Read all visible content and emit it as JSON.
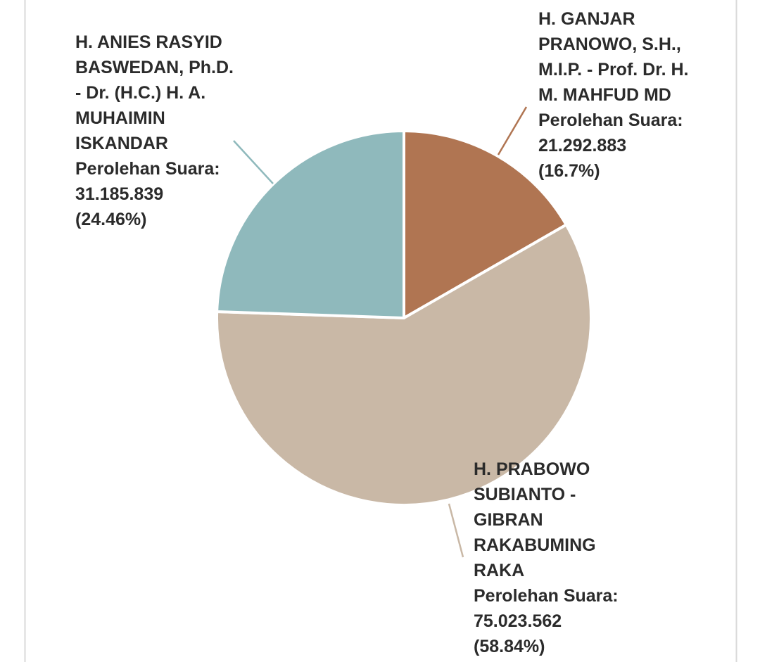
{
  "chart_data": {
    "type": "pie",
    "categories": [
      "H. GANJAR PRANOWO, S.H., M.I.P. - Prof. Dr. H. M. MAHFUD MD",
      "H. PRABOWO SUBIANTO - GIBRAN RAKABUMING RAKA",
      "H. ANIES RASYID BASWEDAN, Ph.D. - Dr. (H.C.) H. A. MUHAIMIN ISKANDAR"
    ],
    "value_prefix": "Perolehan Suara:",
    "values": [
      21292883,
      75023562,
      31185839
    ],
    "value_labels": [
      "21.292.883",
      "75.023.562",
      "31.185.839"
    ],
    "percents": [
      16.7,
      58.84,
      24.46
    ],
    "percent_labels": [
      "(16.7%)",
      "(58.84%)",
      "(24.46%)"
    ],
    "colors": [
      "#b07552",
      "#c9b8a6",
      "#8fb9bc"
    ]
  }
}
